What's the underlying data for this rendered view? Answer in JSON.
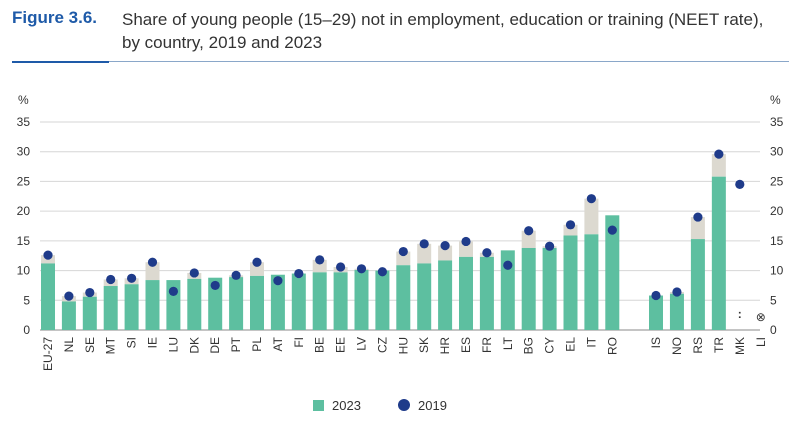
{
  "figure_label": "Figure 3.6.",
  "title": "Share of young people (15–29) not in employment, education or training (NEET rate), by country, 2019 and 2023",
  "colors": {
    "bar_2023": "#5dbfa0",
    "dot_2019": "#1f3b8a",
    "gap": "#dcd9d0",
    "accent": "#1e5aa8"
  },
  "legend": {
    "series_2023": "2023",
    "series_2019": "2019"
  },
  "missing_marks": {
    "mk_2023": ":",
    "li_2023": "⊗"
  },
  "chart_data": {
    "type": "bar",
    "ylabel_left": "%",
    "ylabel_right": "%",
    "ylim": [
      0,
      35
    ],
    "yticks": [
      0,
      5,
      10,
      15,
      20,
      25,
      30,
      35
    ],
    "grid": true,
    "legend_position": "bottom-center",
    "categories": [
      "EU-27",
      "NL",
      "SE",
      "MT",
      "SI",
      "IE",
      "LU",
      "DK",
      "DE",
      "PT",
      "PL",
      "AT",
      "FI",
      "BE",
      "EE",
      "LV",
      "CZ",
      "HU",
      "SK",
      "HR",
      "ES",
      "FR",
      "LT",
      "BG",
      "CY",
      "EL",
      "IT",
      "RO",
      "IS",
      "NO",
      "RS",
      "TR",
      "MK",
      "LI"
    ],
    "series": [
      {
        "name": "2023",
        "values": [
          11.2,
          4.8,
          5.6,
          7.4,
          7.7,
          8.4,
          8.4,
          8.6,
          8.8,
          8.9,
          9.1,
          9.3,
          9.5,
          9.7,
          9.7,
          10.1,
          10.0,
          10.9,
          11.2,
          11.7,
          12.3,
          12.3,
          13.4,
          13.8,
          13.8,
          15.9,
          16.1,
          19.3,
          5.8,
          6.1,
          15.3,
          25.8,
          null,
          null
        ]
      },
      {
        "name": "2019",
        "values": [
          12.6,
          5.7,
          6.3,
          8.5,
          8.7,
          11.4,
          6.5,
          9.6,
          7.5,
          9.2,
          11.4,
          8.3,
          9.5,
          11.8,
          10.6,
          10.3,
          9.8,
          13.2,
          14.5,
          14.2,
          14.9,
          13.0,
          10.9,
          16.7,
          14.1,
          17.7,
          22.1,
          16.8,
          5.8,
          6.4,
          19.0,
          29.6,
          24.5,
          null
        ]
      }
    ]
  }
}
